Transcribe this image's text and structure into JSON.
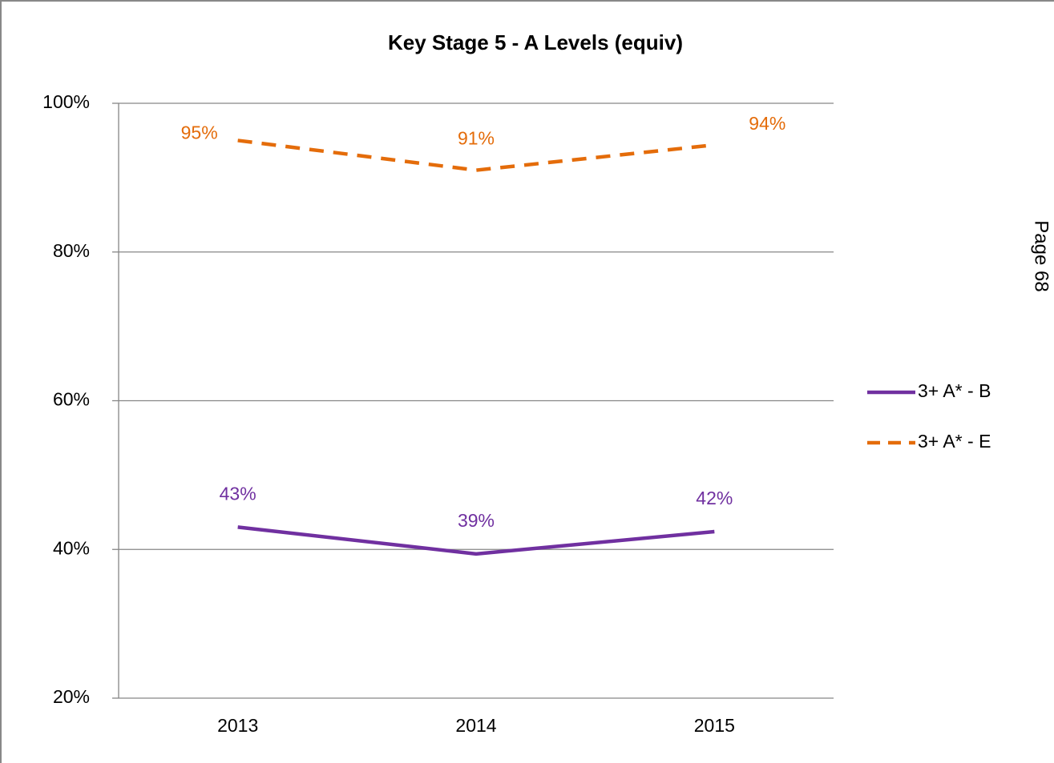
{
  "chart_data": {
    "type": "line",
    "title": "Key Stage 5 - A Levels (equiv)",
    "categories": [
      "2013",
      "2014",
      "2015"
    ],
    "series": [
      {
        "name": "3+ A* - B",
        "color": "#7030a0",
        "line_style": "solid",
        "values": [
          43,
          39.4,
          42.4
        ],
        "value_labels": [
          "43%",
          "39%",
          "42%"
        ]
      },
      {
        "name": "3+ A* - E",
        "color": "#e46c0a",
        "line_style": "dashed",
        "values": [
          95,
          91,
          94.4
        ],
        "value_labels": [
          "95%",
          "91%",
          "94%"
        ]
      }
    ],
    "ylim": [
      20,
      100
    ],
    "yticks": [
      {
        "value": 20,
        "label": "20%"
      },
      {
        "value": 40,
        "label": "40%"
      },
      {
        "value": 60,
        "label": "60%"
      },
      {
        "value": 80,
        "label": "80%"
      },
      {
        "value": 100,
        "label": "100%"
      }
    ],
    "grid": true,
    "legend": "right"
  },
  "page_label": "Page 68"
}
